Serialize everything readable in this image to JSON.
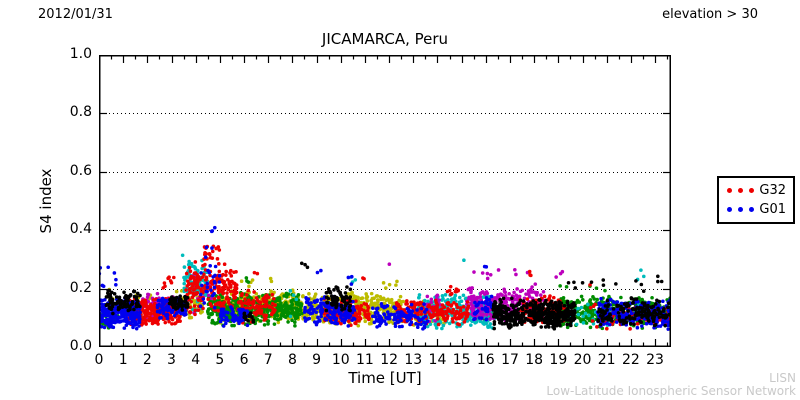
{
  "header": {
    "date": "2012/01/31",
    "elevation_filter": "elevation > 30"
  },
  "watermark": {
    "line1": "LISN",
    "line2": "Low-Latitude Ionospheric Sensor Network"
  },
  "chart_data": {
    "type": "scatter",
    "title": "JICAMARCA, Peru",
    "xlabel": "Time [UT]",
    "ylabel": "S4 index",
    "xlim": [
      0,
      23.66
    ],
    "ylim": [
      0,
      1
    ],
    "xticks": [
      0,
      1,
      2,
      3,
      4,
      5,
      6,
      7,
      8,
      9,
      10,
      11,
      12,
      13,
      14,
      15,
      16,
      17,
      18,
      19,
      20,
      21,
      22,
      23
    ],
    "xtick_minor_step": 0.5,
    "ytick_values": [
      0,
      0.2,
      0.4,
      0.6,
      0.8,
      1
    ],
    "ytick_labels": [
      "0.0",
      "0.2",
      "0.4",
      "0.6",
      "0.8",
      "1.0"
    ],
    "grid_y": [
      0.2,
      0.4,
      0.6,
      0.8
    ],
    "grid_style": "dotted",
    "background": "#ffffff",
    "frame_color": "#000000",
    "point_radius": 1.8,
    "seed": 987654321,
    "legend": {
      "position": "right-outside",
      "entries": [
        {
          "label": "G32",
          "color": "#ee0000"
        },
        {
          "label": "G01",
          "color": "#0000ee"
        }
      ]
    },
    "series_note": "clusters = [tStartHr, tEndHr, numPoints, s4Min, s4Max]; points fill each cluster band",
    "series": [
      {
        "name": "sat-olive",
        "color": "#bcbc00",
        "clusters": [
          [
            0.2,
            0.6,
            5,
            0.12,
            0.21
          ],
          [
            1.4,
            2.3,
            30,
            0.09,
            0.19
          ],
          [
            3.2,
            4.3,
            60,
            0.09,
            0.21
          ],
          [
            4.9,
            8.1,
            330,
            0.08,
            0.2
          ],
          [
            5.8,
            7.7,
            6,
            0.2,
            0.24
          ],
          [
            8.1,
            12.6,
            380,
            0.07,
            0.19
          ],
          [
            11.6,
            12.5,
            5,
            0.19,
            0.23
          ],
          [
            13.0,
            14.3,
            70,
            0.07,
            0.16
          ]
        ]
      },
      {
        "name": "sat-green",
        "color": "#008c00",
        "clusters": [
          [
            0.0,
            0.8,
            30,
            0.06,
            0.12
          ],
          [
            4.5,
            8.4,
            420,
            0.07,
            0.19
          ],
          [
            6.0,
            6.2,
            3,
            0.2,
            0.29
          ],
          [
            15.9,
            16.7,
            50,
            0.08,
            0.18
          ],
          [
            18.9,
            23.9,
            420,
            0.06,
            0.18
          ],
          [
            19.0,
            21.0,
            5,
            0.19,
            0.23
          ]
        ]
      },
      {
        "name": "sat-cyan",
        "color": "#00bcbc",
        "clusters": [
          [
            3.5,
            4.5,
            90,
            0.1,
            0.32
          ],
          [
            3.4,
            3.6,
            1,
            0.3,
            0.32
          ],
          [
            7.9,
            8.2,
            4,
            0.1,
            0.21
          ],
          [
            10.4,
            10.7,
            3,
            0.18,
            0.26
          ],
          [
            13.2,
            16.4,
            300,
            0.06,
            0.19
          ],
          [
            14.9,
            15.1,
            1,
            0.28,
            0.3
          ],
          [
            19.4,
            22.6,
            60,
            0.07,
            0.15
          ],
          [
            21.6,
            22.6,
            3,
            0.2,
            0.28
          ]
        ]
      },
      {
        "name": "sat-magenta",
        "color": "#bc00bc",
        "clusters": [
          [
            1.8,
            2.5,
            50,
            0.09,
            0.19
          ],
          [
            2.8,
            3.3,
            30,
            0.1,
            0.18
          ],
          [
            3.9,
            4.7,
            15,
            0.1,
            0.28
          ],
          [
            12.0,
            12.2,
            1,
            0.27,
            0.29
          ],
          [
            13.4,
            14.2,
            25,
            0.07,
            0.2
          ],
          [
            15.2,
            18.4,
            280,
            0.08,
            0.21
          ],
          [
            15.5,
            18.2,
            10,
            0.21,
            0.28
          ],
          [
            18.8,
            19.3,
            3,
            0.2,
            0.28
          ]
        ]
      },
      {
        "name": "sat-red",
        "color": "#ee0000",
        "clusters": [
          [
            1.2,
            3.4,
            280,
            0.07,
            0.17
          ],
          [
            2.6,
            3.1,
            8,
            0.18,
            0.26
          ],
          [
            3.6,
            5.7,
            200,
            0.1,
            0.3
          ],
          [
            4.3,
            5.0,
            18,
            0.28,
            0.4
          ],
          [
            5.7,
            7.3,
            90,
            0.08,
            0.2
          ],
          [
            6.4,
            6.6,
            2,
            0.23,
            0.27
          ],
          [
            9.2,
            11.2,
            130,
            0.07,
            0.17
          ],
          [
            10.9,
            11.1,
            2,
            0.2,
            0.28
          ],
          [
            12.3,
            15.3,
            180,
            0.07,
            0.17
          ],
          [
            14.4,
            15.0,
            10,
            0.16,
            0.22
          ],
          [
            17.4,
            19.3,
            130,
            0.07,
            0.18
          ],
          [
            17.8,
            18.1,
            3,
            0.2,
            0.26
          ],
          [
            20.3,
            23.8,
            90,
            0.06,
            0.15
          ],
          [
            20.2,
            20.4,
            1,
            0.2,
            0.22
          ]
        ]
      },
      {
        "name": "sat-blue",
        "color": "#0000ee",
        "clusters": [
          [
            0.0,
            1.7,
            260,
            0.06,
            0.17
          ],
          [
            0.0,
            0.9,
            8,
            0.18,
            0.3
          ],
          [
            2.4,
            3.6,
            90,
            0.09,
            0.18
          ],
          [
            4.2,
            5.0,
            25,
            0.12,
            0.3
          ],
          [
            4.4,
            4.8,
            6,
            0.3,
            0.46
          ],
          [
            5.0,
            6.2,
            60,
            0.07,
            0.14
          ],
          [
            8.5,
            10.6,
            160,
            0.07,
            0.18
          ],
          [
            9.0,
            9.2,
            2,
            0.22,
            0.27
          ],
          [
            10.1,
            10.5,
            3,
            0.2,
            0.26
          ],
          [
            11.3,
            13.6,
            120,
            0.06,
            0.15
          ],
          [
            15.5,
            16.3,
            40,
            0.08,
            0.18
          ],
          [
            15.9,
            16.1,
            2,
            0.25,
            0.3
          ],
          [
            20.6,
            23.9,
            260,
            0.06,
            0.17
          ]
        ]
      },
      {
        "name": "sat-black",
        "color": "#000000",
        "clusters": [
          [
            0.3,
            1.7,
            90,
            0.11,
            0.2
          ],
          [
            2.9,
            3.7,
            60,
            0.12,
            0.18
          ],
          [
            5.9,
            6.4,
            15,
            0.08,
            0.13
          ],
          [
            8.3,
            8.7,
            3,
            0.25,
            0.3
          ],
          [
            9.4,
            10.4,
            70,
            0.12,
            0.21
          ],
          [
            16.3,
            19.7,
            420,
            0.06,
            0.17
          ],
          [
            19.3,
            21.4,
            8,
            0.18,
            0.25
          ],
          [
            20.6,
            23.6,
            150,
            0.07,
            0.17
          ],
          [
            22.2,
            23.4,
            6,
            0.18,
            0.25
          ]
        ]
      }
    ]
  }
}
